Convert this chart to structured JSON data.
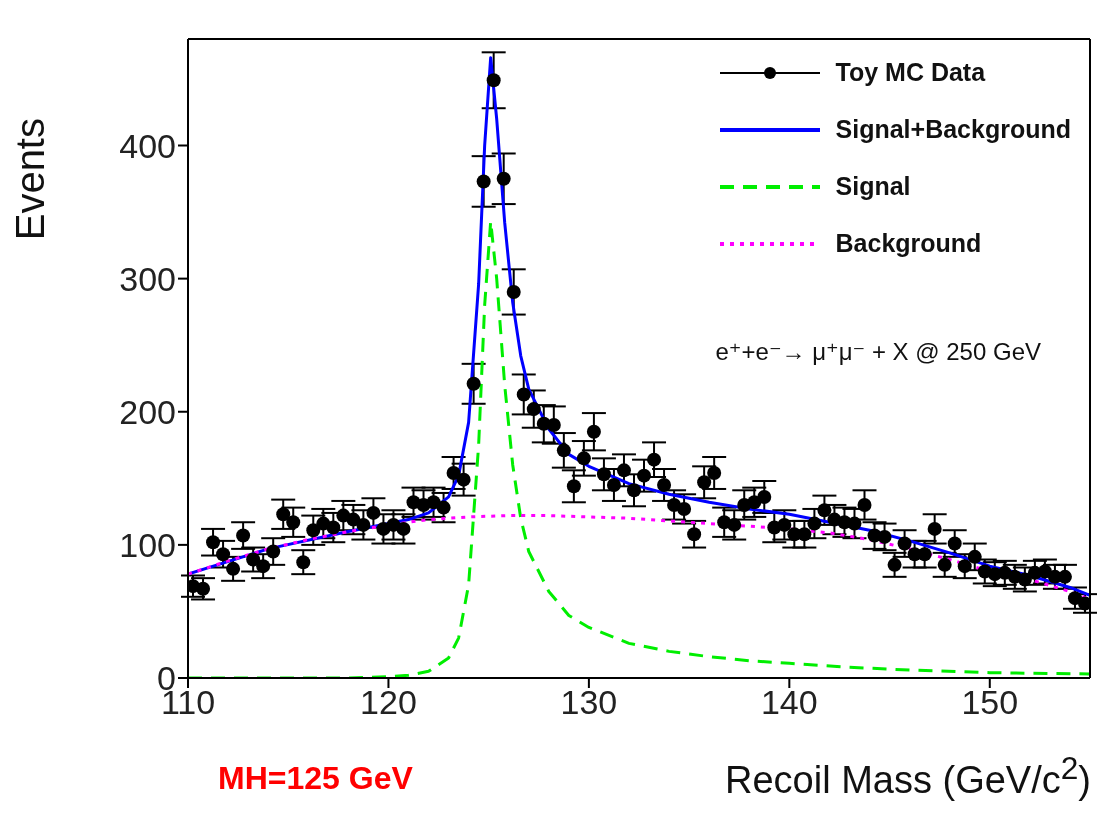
{
  "chart_data": {
    "type": "line",
    "xlabel": "Recoil Mass (GeV/c$^{2}$)",
    "ylabel": "Events",
    "xlim": [
      110,
      155
    ],
    "xticks": [
      110,
      120,
      130,
      140,
      150
    ],
    "ylim": [
      0,
      480
    ],
    "yticks": [
      0,
      100,
      200,
      300,
      400
    ],
    "legend": "top right",
    "annotations": [
      "e⁺+e⁻→ μ⁺μ⁻ + X @ 250 GeV",
      "MH=125 GeV"
    ],
    "series": [
      {
        "name": "Toy MC Data",
        "type": "scatter",
        "marker": "circle",
        "color": "#000000",
        "x": [
          110.25,
          110.75,
          111.25,
          111.75,
          112.25,
          112.75,
          113.25,
          113.75,
          114.25,
          114.75,
          115.25,
          115.75,
          116.25,
          116.75,
          117.25,
          117.75,
          118.25,
          118.75,
          119.25,
          119.75,
          120.25,
          120.75,
          121.25,
          121.75,
          122.25,
          122.75,
          123.25,
          123.75,
          124.25,
          124.75,
          125.25,
          125.75,
          126.25,
          126.75,
          127.25,
          127.75,
          128.25,
          128.75,
          129.25,
          129.75,
          130.25,
          130.75,
          131.25,
          131.75,
          132.25,
          132.75,
          133.25,
          133.75,
          134.25,
          134.75,
          135.25,
          135.75,
          136.25,
          136.75,
          137.25,
          137.75,
          138.25,
          138.75,
          139.25,
          139.75,
          140.25,
          140.75,
          141.25,
          141.75,
          142.25,
          142.75,
          143.25,
          143.75,
          144.25,
          144.75,
          145.25,
          145.75,
          146.25,
          146.75,
          147.25,
          147.75,
          148.25,
          148.75,
          149.25,
          149.75,
          150.25,
          150.75,
          151.25,
          151.75,
          152.25,
          152.75,
          153.25,
          153.75,
          154.25,
          154.75
        ],
        "values": [
          69,
          67,
          102,
          93,
          82,
          107,
          89,
          84,
          95,
          123,
          117,
          87,
          111,
          116,
          113,
          122,
          119,
          115,
          124,
          112,
          115,
          112,
          132,
          130,
          132,
          128,
          154,
          149,
          221,
          373,
          449,
          375,
          290,
          213,
          202,
          191,
          190,
          171,
          144,
          165,
          185,
          153,
          145,
          156,
          141,
          152,
          164,
          145,
          130,
          127,
          108,
          147,
          154,
          117,
          115,
          130,
          132,
          136,
          113,
          115,
          108,
          108,
          116,
          126,
          119,
          117,
          116,
          130,
          107,
          106,
          85,
          101,
          93,
          93,
          112,
          85,
          101,
          84,
          91,
          80,
          78,
          79,
          76,
          74,
          79,
          80,
          76,
          76,
          60,
          56
        ],
        "errors": [
          8,
          8,
          10,
          10,
          9,
          10,
          9,
          9,
          10,
          11,
          11,
          9,
          11,
          11,
          11,
          11,
          11,
          11,
          11,
          11,
          11,
          11,
          11,
          11,
          11,
          11,
          12,
          12,
          15,
          19,
          21,
          19,
          17,
          15,
          14,
          14,
          14,
          13,
          12,
          13,
          14,
          12,
          12,
          12,
          12,
          12,
          13,
          12,
          11,
          11,
          10,
          12,
          12,
          11,
          11,
          11,
          11,
          12,
          11,
          11,
          10,
          10,
          11,
          11,
          11,
          11,
          11,
          11,
          10,
          10,
          9,
          10,
          10,
          10,
          11,
          9,
          10,
          9,
          10,
          9,
          9,
          9,
          9,
          9,
          9,
          9,
          9,
          9,
          8,
          7
        ]
      },
      {
        "name": "Signal+Background",
        "color": "#0000ff",
        "line_style": "solid",
        "x": [
          110,
          114,
          118,
          120,
          121,
          122,
          123,
          123.5,
          124,
          124.5,
          124.8,
          125.1,
          125.4,
          125.8,
          126.2,
          126.6,
          127,
          128,
          129,
          130,
          132,
          134,
          136,
          138,
          140,
          142,
          144,
          146,
          148,
          150,
          152,
          154,
          155
        ],
        "values": [
          78,
          97,
          110,
          116,
          119,
          124,
          136,
          152,
          192,
          296,
          400,
          466,
          420,
          342,
          282,
          242,
          217,
          187,
          168,
          159,
          146,
          138,
          132,
          127,
          123,
          117,
          111,
          103,
          94,
          84,
          77,
          68,
          62
        ]
      },
      {
        "name": "Signal",
        "color": "#00ee00",
        "line_style": "dashed",
        "x": [
          110,
          118,
          120,
          121,
          122,
          123,
          123.5,
          124,
          124.5,
          124.8,
          125.1,
          125.4,
          125.8,
          126.2,
          126.6,
          127,
          128,
          129,
          130,
          132,
          134,
          136,
          138,
          140,
          143,
          146,
          150,
          155
        ],
        "values": [
          0,
          0,
          1,
          2,
          5,
          15,
          30,
          70,
          175,
          280,
          343,
          300,
          220,
          160,
          120,
          95,
          65,
          47,
          38,
          26,
          20,
          16,
          13,
          11,
          8,
          6,
          4,
          3
        ]
      },
      {
        "name": "Background",
        "color": "#ff00ff",
        "line_style": "dotted",
        "x": [
          110,
          112,
          114,
          116,
          118,
          120,
          122,
          124,
          126,
          128,
          130,
          132,
          134,
          136,
          138,
          140,
          142,
          144,
          146,
          148,
          150,
          152,
          154,
          155
        ],
        "values": [
          78,
          88,
          97,
          104,
          110,
          115,
          119,
          121,
          122,
          122,
          121,
          120,
          118,
          116,
          114,
          112,
          109,
          104,
          97,
          89,
          80,
          74,
          65,
          59
        ]
      }
    ]
  }
}
